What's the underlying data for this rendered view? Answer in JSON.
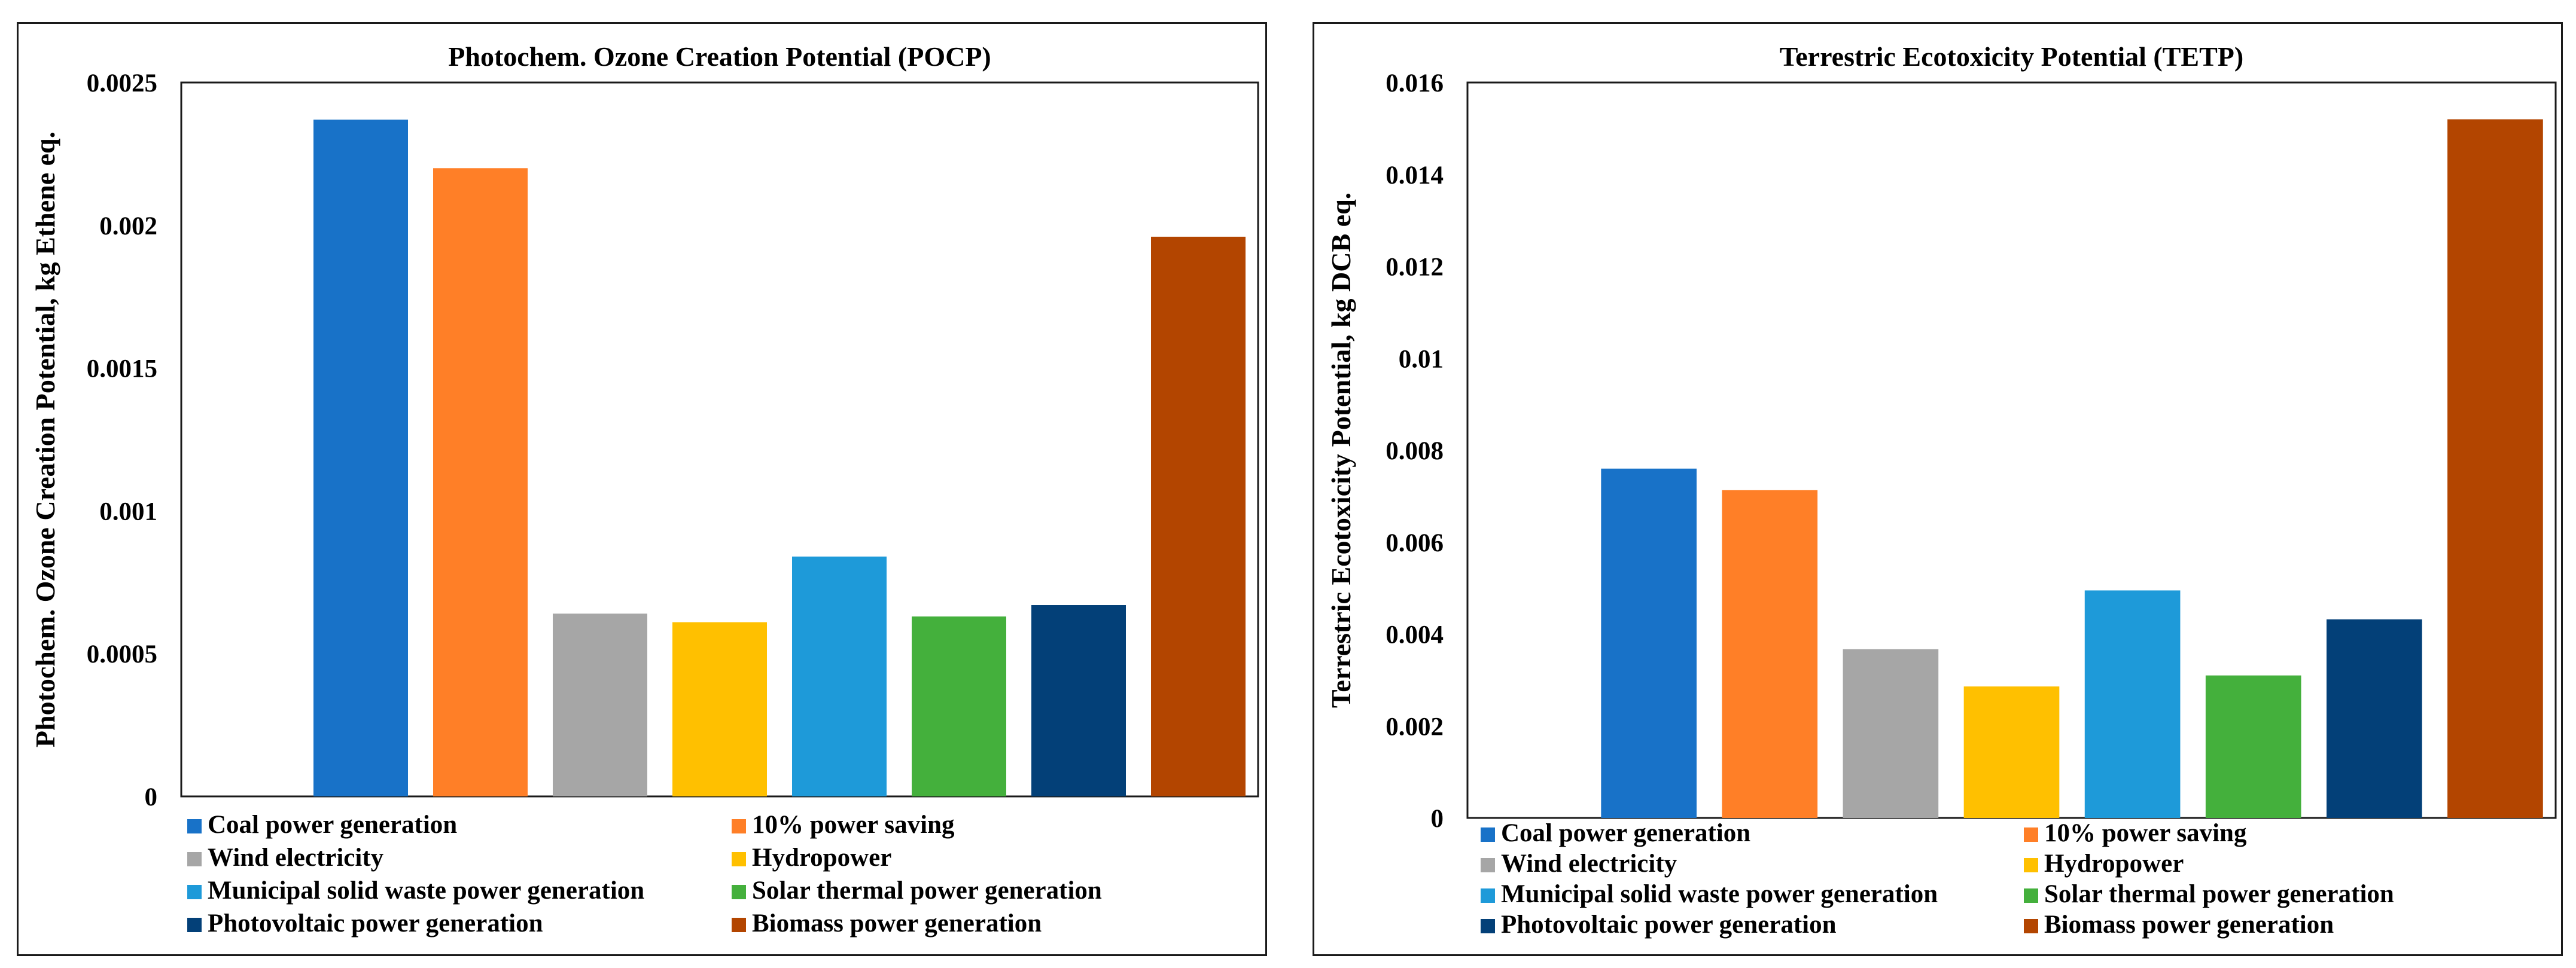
{
  "chart_data": [
    {
      "type": "bar",
      "title": "Photochem. Ozone Creation Potential (POCP)",
      "ylabel": "Photochem. Ozone Creation Potential, kg Ethene eq.",
      "xlabel": "",
      "ylim": [
        0,
        0.0025
      ],
      "yticks": [
        "0",
        "0.0005",
        "0.001",
        "0.0015",
        "0.002",
        "0.0025"
      ],
      "legend_position": "bottom",
      "series": [
        {
          "name": "Coal power generation",
          "value": 0.00237,
          "color": "#1872C8"
        },
        {
          "name": "10% power saving",
          "value": 0.0022,
          "color": "#FF7F27"
        },
        {
          "name": "Wind electricity",
          "value": 0.00064,
          "color": "#A6A6A6"
        },
        {
          "name": "Hydropower",
          "value": 0.00061,
          "color": "#FFC000"
        },
        {
          "name": "Municipal solid waste power generation",
          "value": 0.00084,
          "color": "#1E9AD9"
        },
        {
          "name": "Solar thermal power generation",
          "value": 0.00063,
          "color": "#44B03C"
        },
        {
          "name": "Photovoltaic power generation",
          "value": 0.00067,
          "color": "#034078"
        },
        {
          "name": "Biomass power generation",
          "value": 0.00196,
          "color": "#B34500"
        }
      ]
    },
    {
      "type": "bar",
      "title": "Terrestric Ecotoxicity Potential (TETP)",
      "ylabel": "Terrestric Ecotoxicity Potential, kg DCB eq.",
      "xlabel": "",
      "ylim": [
        0,
        0.016
      ],
      "yticks": [
        "0",
        "0.002",
        "0.004",
        "0.006",
        "0.008",
        "0.01",
        "0.012",
        "0.014",
        "0.016"
      ],
      "legend_position": "bottom",
      "series": [
        {
          "name": "Coal power generation",
          "value": 0.0076,
          "color": "#1872C8"
        },
        {
          "name": "10% power saving",
          "value": 0.00713,
          "color": "#FF7F27"
        },
        {
          "name": "Wind electricity",
          "value": 0.00367,
          "color": "#A6A6A6"
        },
        {
          "name": "Hydropower",
          "value": 0.00286,
          "color": "#FFC000"
        },
        {
          "name": "Municipal solid waste power generation",
          "value": 0.00495,
          "color": "#1E9AD9"
        },
        {
          "name": "Solar thermal power generation",
          "value": 0.0031,
          "color": "#44B03C"
        },
        {
          "name": "Photovoltaic power generation",
          "value": 0.00432,
          "color": "#034078"
        },
        {
          "name": "Biomass power generation",
          "value": 0.0152,
          "color": "#B34500"
        }
      ]
    }
  ]
}
